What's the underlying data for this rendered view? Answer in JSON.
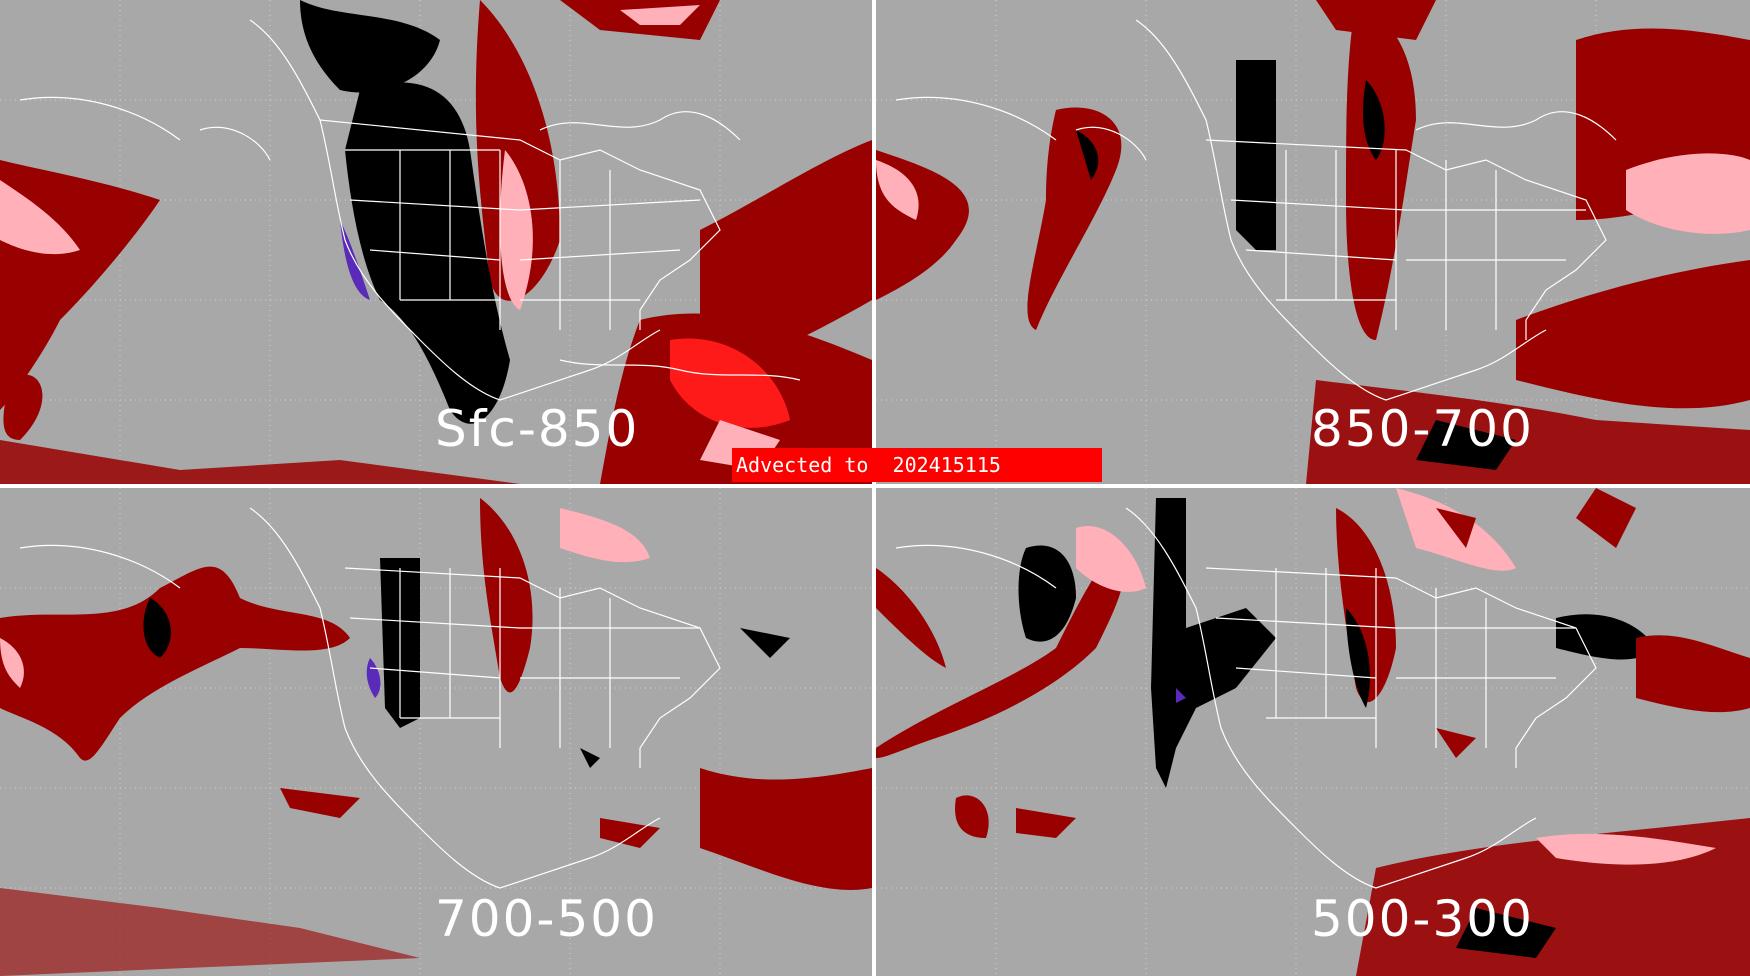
{
  "figure": {
    "banner_text": "Advected to  202415115",
    "panels": [
      {
        "id": "sfc-850",
        "label": "Sfc-850"
      },
      {
        "id": "850-700",
        "label": "850-700"
      },
      {
        "id": "700-500",
        "label": "700-500"
      },
      {
        "id": "500-300",
        "label": "500-300"
      }
    ],
    "colors": {
      "background": "#a8a8a8",
      "dark_red": "#990000",
      "pink": "#ffb0b8",
      "red": "#ff1a1a",
      "black": "#000000",
      "purple": "#5a2ab8",
      "boundaries": "#ffffff",
      "banner": "#ff0000"
    }
  }
}
